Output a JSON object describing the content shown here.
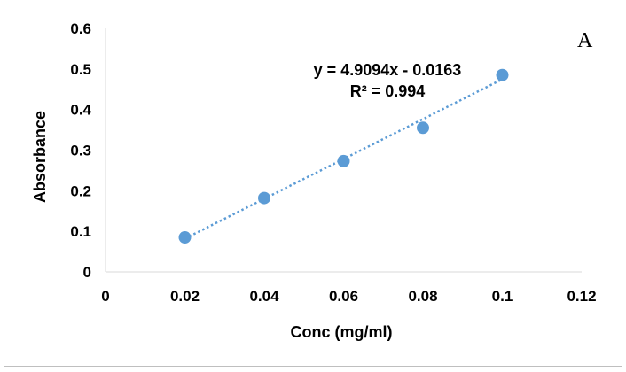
{
  "chart_data": {
    "type": "scatter",
    "panel_label": "A",
    "xlabel": "Conc (mg/ml)",
    "ylabel": "Absorbance",
    "xlim": [
      0,
      0.12
    ],
    "ylim": [
      0,
      0.6
    ],
    "xticks": [
      0,
      0.02,
      0.04,
      0.06,
      0.08,
      0.1,
      0.12
    ],
    "xtick_labels": [
      "0",
      "0.02",
      "0.04",
      "0.06",
      "0.08",
      "0.1",
      "0.12"
    ],
    "yticks": [
      0,
      0.1,
      0.2,
      0.3,
      0.4,
      0.5,
      0.6
    ],
    "ytick_labels": [
      "0",
      "0.1",
      "0.2",
      "0.3",
      "0.4",
      "0.5",
      "0.6"
    ],
    "grid": false,
    "series": [
      {
        "x": [
          0.02,
          0.04,
          0.06,
          0.08,
          0.1
        ],
        "y": [
          0.085,
          0.182,
          0.273,
          0.355,
          0.485
        ],
        "color": "#5b9bd5"
      }
    ],
    "trendline": {
      "type": "linear",
      "slope": 4.9094,
      "intercept": -0.0163,
      "x_range": [
        0.02,
        0.1
      ],
      "style": "dotted",
      "color": "#5b9bd5",
      "equation_label": "y = 4.9094x - 0.0163",
      "r2_label": "R² = 0.994"
    }
  }
}
